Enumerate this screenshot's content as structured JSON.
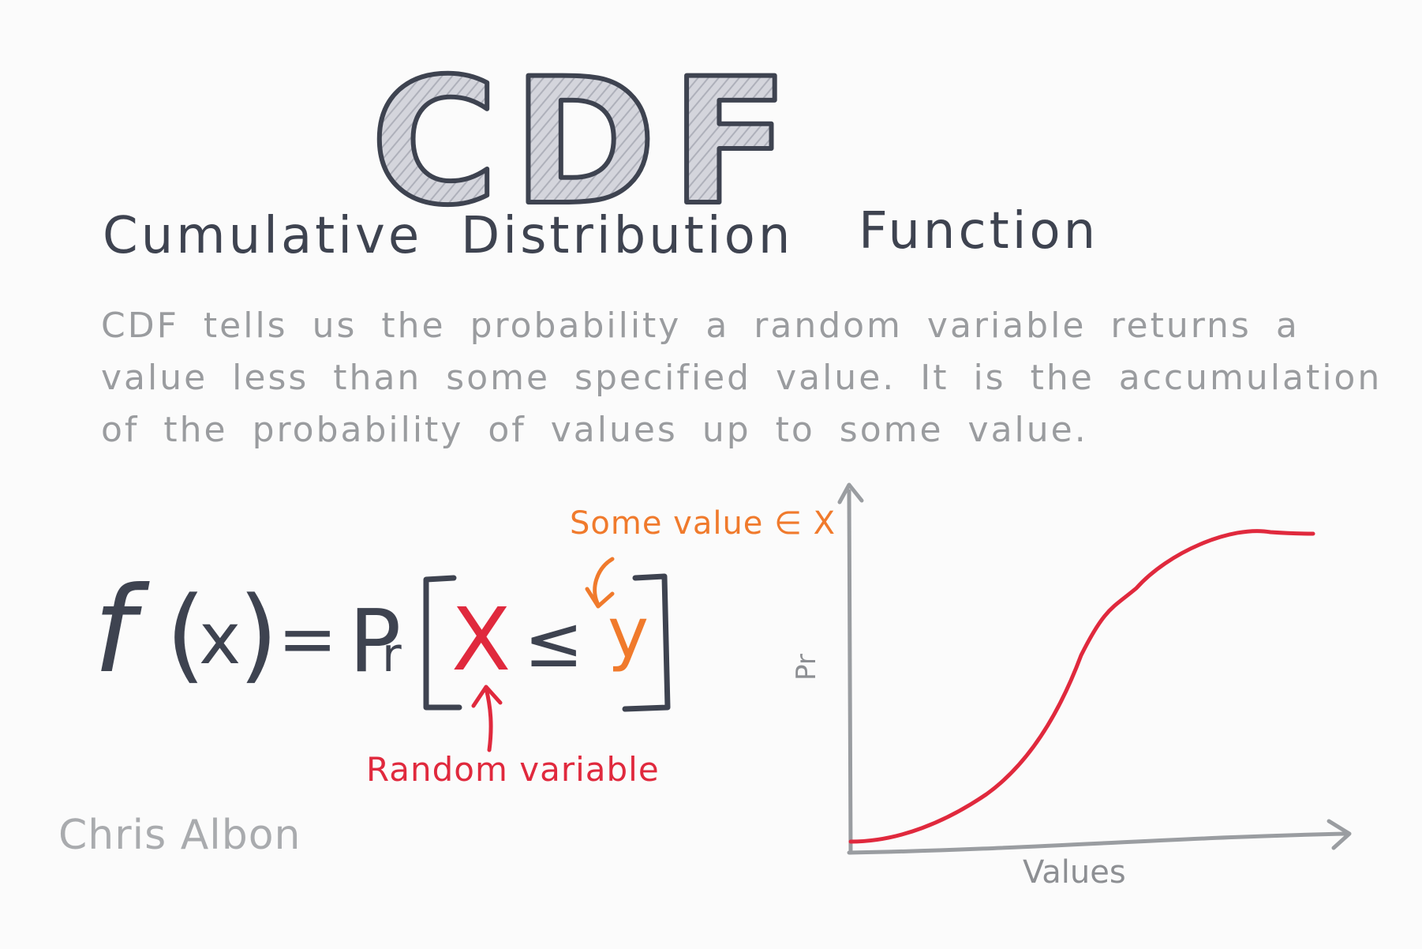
{
  "title": "CDF",
  "subtitle": {
    "word1": "Cumulative",
    "word2": "Distribution",
    "word3": "Function"
  },
  "description": {
    "line1": "CDF tells us the probability a random variable returns a",
    "line2": "value less than some specified value. It is the accumulation",
    "line3": "of the probability of values up to some value."
  },
  "formula": {
    "f": "f",
    "open_paren": "(",
    "x": "x",
    "close_paren": ")",
    "equals": "=",
    "P": "P",
    "r": "r",
    "X": "X",
    "leq": "≤",
    "y": "y"
  },
  "annotations": {
    "some_value": "Some value ∈ X",
    "random_variable": "Random variable"
  },
  "graph": {
    "x_label": "Values",
    "y_label": "Pr",
    "curve_color": "#e0293d",
    "axis_color": "#9a9da1"
  },
  "author": "Chris Albon",
  "colors": {
    "ink": "#3e4350",
    "gray": "#9a9c9f",
    "orange": "#f07a2c",
    "red": "#e0293d"
  }
}
